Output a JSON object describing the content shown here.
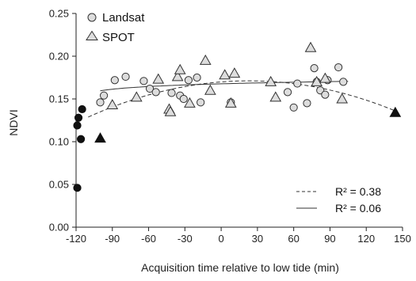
{
  "chart_data": {
    "type": "scatter",
    "xlabel": "Acquisition time relative to low tide (min)",
    "ylabel": "NDVI",
    "xlim": [
      -120,
      150
    ],
    "ylim": [
      0,
      0.25
    ],
    "x_ticks": [
      "-120",
      "-90",
      "-60",
      "-30",
      "0",
      "30",
      "60",
      "90",
      "120",
      "150"
    ],
    "y_ticks": [
      "0.00",
      "0.05",
      "0.10",
      "0.15",
      "0.20",
      "0.25"
    ],
    "legend_placement": "top-left",
    "grid": false,
    "colors": {
      "marker_fill": "#dddddd",
      "outlier_fill": "#111111",
      "stroke": "#333333"
    },
    "series": [
      {
        "name": "Landsat",
        "marker": "circle",
        "points": [
          [
            -100,
            0.146
          ],
          [
            -97,
            0.154
          ],
          [
            -88,
            0.172
          ],
          [
            -79,
            0.176
          ],
          [
            -64,
            0.171
          ],
          [
            -59,
            0.162
          ],
          [
            -54,
            0.158
          ],
          [
            -41,
            0.157
          ],
          [
            -34,
            0.154
          ],
          [
            -31,
            0.15
          ],
          [
            -27,
            0.172
          ],
          [
            -20,
            0.175
          ],
          [
            -17,
            0.146
          ],
          [
            8,
            0.146
          ],
          [
            55,
            0.158
          ],
          [
            60,
            0.14
          ],
          [
            63,
            0.168
          ],
          [
            71,
            0.145
          ],
          [
            77,
            0.186
          ],
          [
            79,
            0.17
          ],
          [
            82,
            0.16
          ],
          [
            86,
            0.155
          ],
          [
            88,
            0.172
          ],
          [
            97,
            0.187
          ],
          [
            101,
            0.17
          ]
        ]
      },
      {
        "name": "SPOT",
        "marker": "triangle",
        "points": [
          [
            -90,
            0.143
          ],
          [
            -70,
            0.152
          ],
          [
            -52,
            0.173
          ],
          [
            -43,
            0.138
          ],
          [
            -42,
            0.135
          ],
          [
            -36,
            0.176
          ],
          [
            -34,
            0.184
          ],
          [
            -26,
            0.145
          ],
          [
            -13,
            0.195
          ],
          [
            -9,
            0.16
          ],
          [
            3,
            0.178
          ],
          [
            8,
            0.145
          ],
          [
            11,
            0.18
          ],
          [
            41,
            0.17
          ],
          [
            45,
            0.152
          ],
          [
            74,
            0.21
          ],
          [
            79,
            0.17
          ],
          [
            86,
            0.174
          ],
          [
            100,
            0.15
          ]
        ]
      },
      {
        "name": "",
        "marker": "circle-filled",
        "points": [
          [
            -119,
            0.046
          ],
          [
            -119,
            0.119
          ],
          [
            -118,
            0.128
          ],
          [
            -116,
            0.103
          ],
          [
            -115,
            0.138
          ]
        ]
      },
      {
        "name": "",
        "marker": "triangle-filled",
        "points": [
          [
            -100,
            0.104
          ],
          [
            144,
            0.134
          ]
        ]
      }
    ],
    "fits": [
      {
        "label": "R² = 0.38",
        "style": "dashed",
        "type": "quadratic",
        "coefficients": [
          0.16993,
          0.00011,
          -2.4e-06
        ]
      },
      {
        "label": "R² = 0.06",
        "style": "solid",
        "type": "logarithmic",
        "x_range": [
          -100,
          105
        ],
        "coefficients": [
          0.14545,
          0.00464,
          121
        ]
      }
    ]
  }
}
